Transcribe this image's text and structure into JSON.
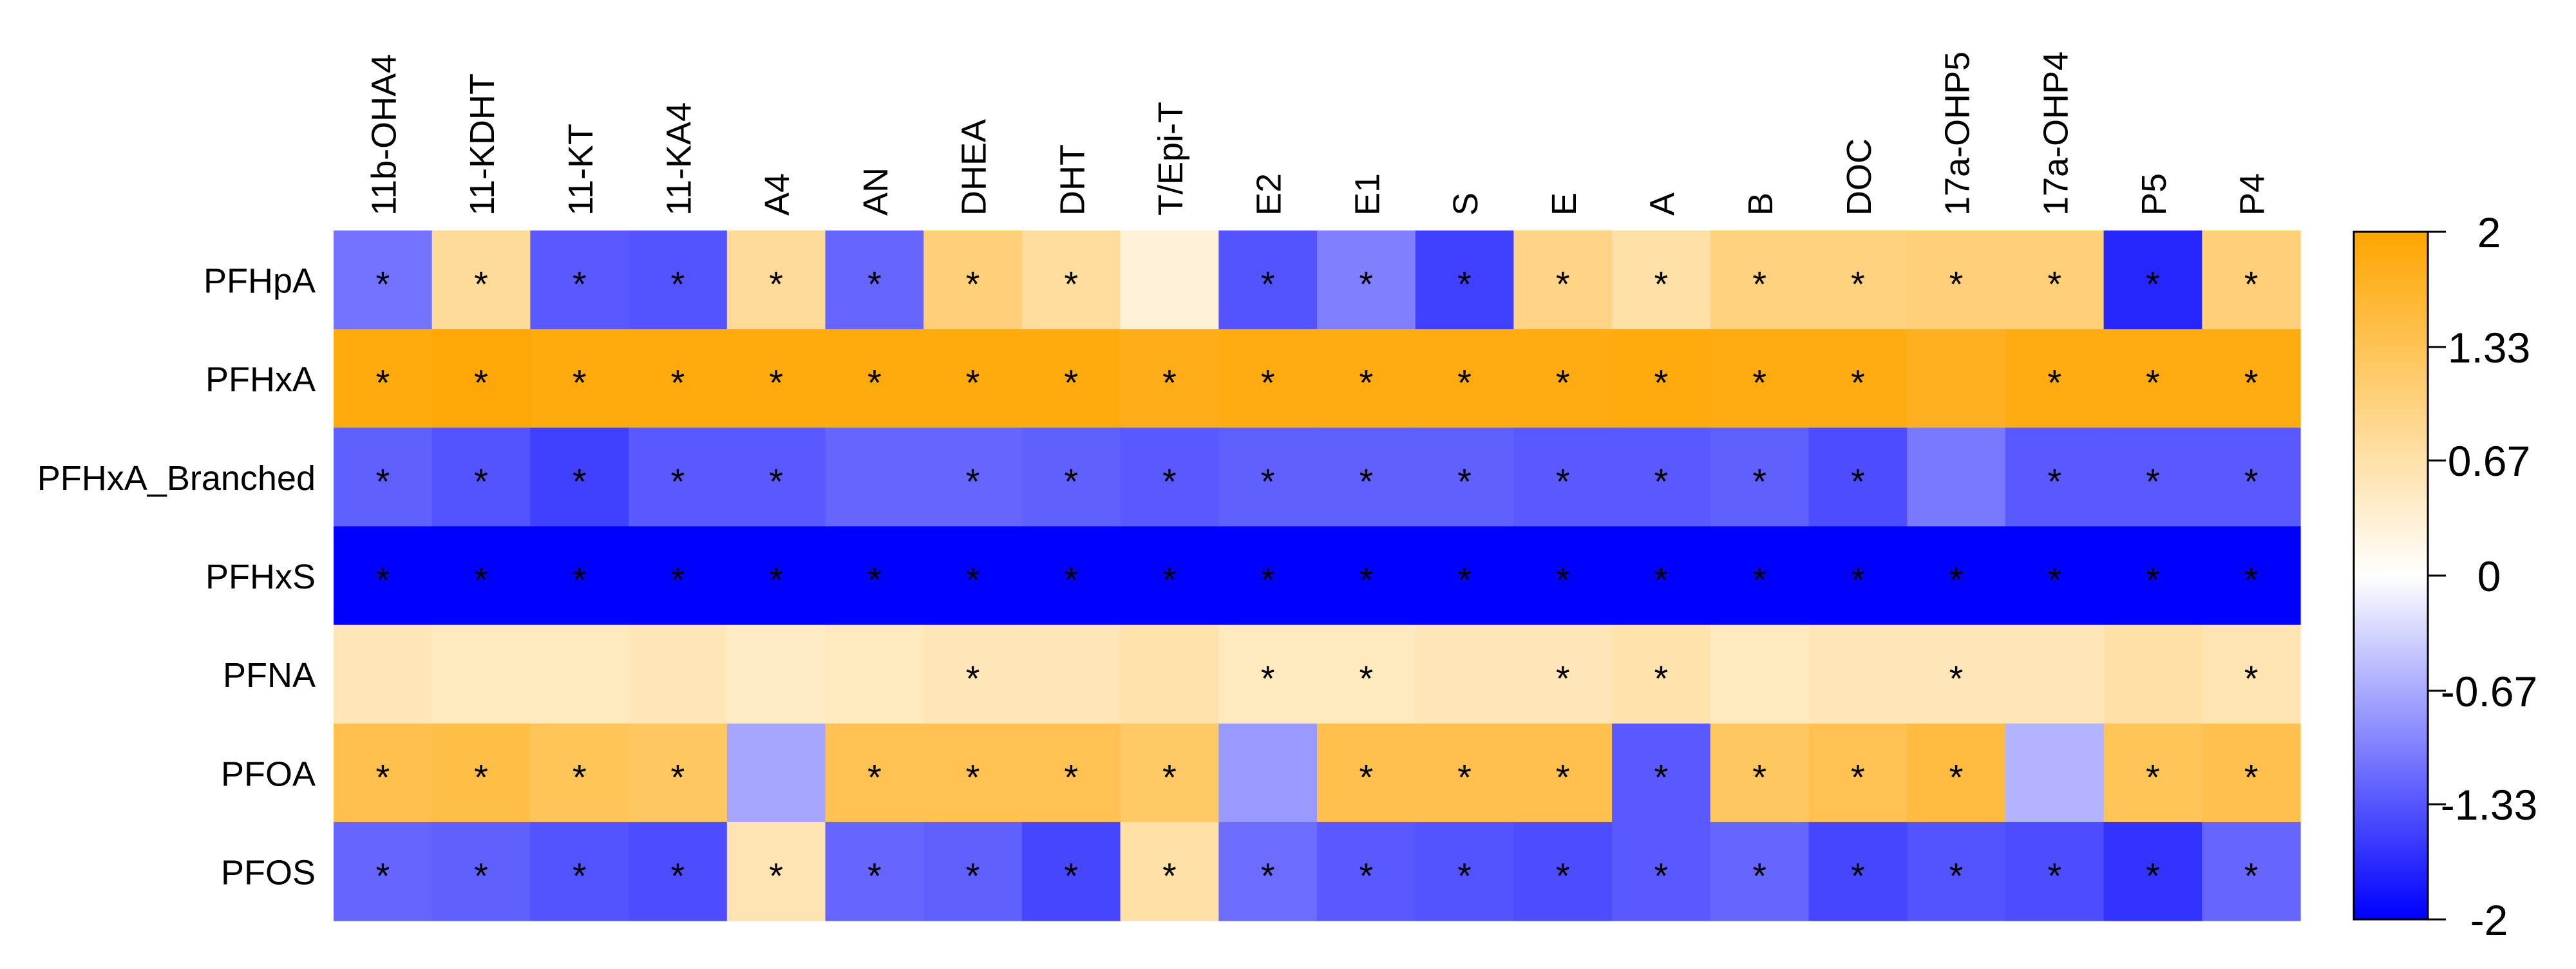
{
  "chart_data": {
    "type": "heatmap",
    "title": "",
    "xlabel": "",
    "ylabel": "",
    "columns": [
      "11b-OHA4",
      "11-KDHT",
      "11-KT",
      "11-KA4",
      "A4",
      "AN",
      "DHEA",
      "DHT",
      "T/Epi-T",
      "E2",
      "E1",
      "S",
      "E",
      "A",
      "B",
      "DOC",
      "17a-OHP5",
      "17a-OHP4",
      "P5",
      "P4"
    ],
    "rows": [
      "PFHpA",
      "PFHxA",
      "PFHxA_Branched",
      "PFHxS",
      "PFNA",
      "PFOA",
      "PFOS"
    ],
    "values": [
      [
        -1.1,
        0.8,
        -1.3,
        -1.35,
        0.8,
        -1.2,
        1.05,
        0.75,
        0.3,
        -1.35,
        -1.0,
        -1.5,
        0.95,
        0.7,
        1.0,
        1.0,
        1.05,
        1.05,
        -1.7,
        1.05
      ],
      [
        1.9,
        1.95,
        1.9,
        1.9,
        1.9,
        1.9,
        1.9,
        1.9,
        1.8,
        1.85,
        1.85,
        1.85,
        1.85,
        1.9,
        1.85,
        1.85,
        1.75,
        1.85,
        1.85,
        1.85
      ],
      [
        -1.25,
        -1.35,
        -1.5,
        -1.3,
        -1.3,
        -1.2,
        -1.2,
        -1.25,
        -1.3,
        -1.25,
        -1.25,
        -1.25,
        -1.3,
        -1.3,
        -1.25,
        -1.4,
        -1.05,
        -1.3,
        -1.3,
        -1.3
      ],
      [
        -2.0,
        -2.0,
        -2.0,
        -2.0,
        -2.0,
        -2.0,
        -2.0,
        -2.0,
        -2.0,
        -2.0,
        -2.0,
        -2.0,
        -2.0,
        -2.0,
        -2.0,
        -2.0,
        -2.0,
        -2.0,
        -2.0,
        -2.0
      ],
      [
        0.55,
        0.5,
        0.5,
        0.55,
        0.45,
        0.5,
        0.55,
        0.55,
        0.65,
        0.5,
        0.5,
        0.55,
        0.55,
        0.65,
        0.5,
        0.55,
        0.55,
        0.55,
        0.7,
        0.6
      ],
      [
        1.4,
        1.45,
        1.3,
        1.25,
        -0.7,
        1.35,
        1.35,
        1.35,
        1.2,
        -0.8,
        1.4,
        1.4,
        1.4,
        -1.3,
        1.25,
        1.35,
        1.5,
        -0.6,
        1.3,
        1.4
      ],
      [
        -1.2,
        -1.25,
        -1.35,
        -1.4,
        0.6,
        -1.2,
        -1.25,
        -1.45,
        0.7,
        -1.15,
        -1.3,
        -1.35,
        -1.4,
        -1.3,
        -1.2,
        -1.45,
        -1.35,
        -1.4,
        -1.6,
        -1.2
      ]
    ],
    "significant": [
      [
        1,
        1,
        1,
        1,
        1,
        1,
        1,
        1,
        0,
        1,
        1,
        1,
        1,
        1,
        1,
        1,
        1,
        1,
        1,
        1
      ],
      [
        1,
        1,
        1,
        1,
        1,
        1,
        1,
        1,
        1,
        1,
        1,
        1,
        1,
        1,
        1,
        1,
        0,
        1,
        1,
        1
      ],
      [
        1,
        1,
        1,
        1,
        1,
        0,
        1,
        1,
        1,
        1,
        1,
        1,
        1,
        1,
        1,
        1,
        0,
        1,
        1,
        1
      ],
      [
        1,
        1,
        1,
        1,
        1,
        1,
        1,
        1,
        1,
        1,
        1,
        1,
        1,
        1,
        1,
        1,
        1,
        1,
        1,
        1
      ],
      [
        0,
        0,
        0,
        0,
        0,
        0,
        1,
        0,
        0,
        1,
        1,
        0,
        1,
        1,
        0,
        0,
        1,
        0,
        0,
        1
      ],
      [
        1,
        1,
        1,
        1,
        0,
        1,
        1,
        1,
        1,
        0,
        1,
        1,
        1,
        1,
        1,
        1,
        1,
        0,
        1,
        1
      ],
      [
        1,
        1,
        1,
        1,
        1,
        1,
        1,
        1,
        1,
        1,
        1,
        1,
        1,
        1,
        1,
        1,
        1,
        1,
        1,
        1
      ]
    ],
    "marker": "*",
    "colorbar": {
      "range": [
        -2,
        2
      ],
      "ticks": [
        -2,
        -1.33,
        -0.67,
        0,
        0.67,
        1.33,
        2
      ],
      "tick_labels": [
        "-2",
        "-1.33",
        "-0.67",
        "0",
        "0.67",
        "1.33",
        "2"
      ],
      "colors": {
        "low": "#0000ff",
        "mid": "#ffffff",
        "high": "#ffa500"
      }
    },
    "grid": false,
    "legend": "right"
  }
}
